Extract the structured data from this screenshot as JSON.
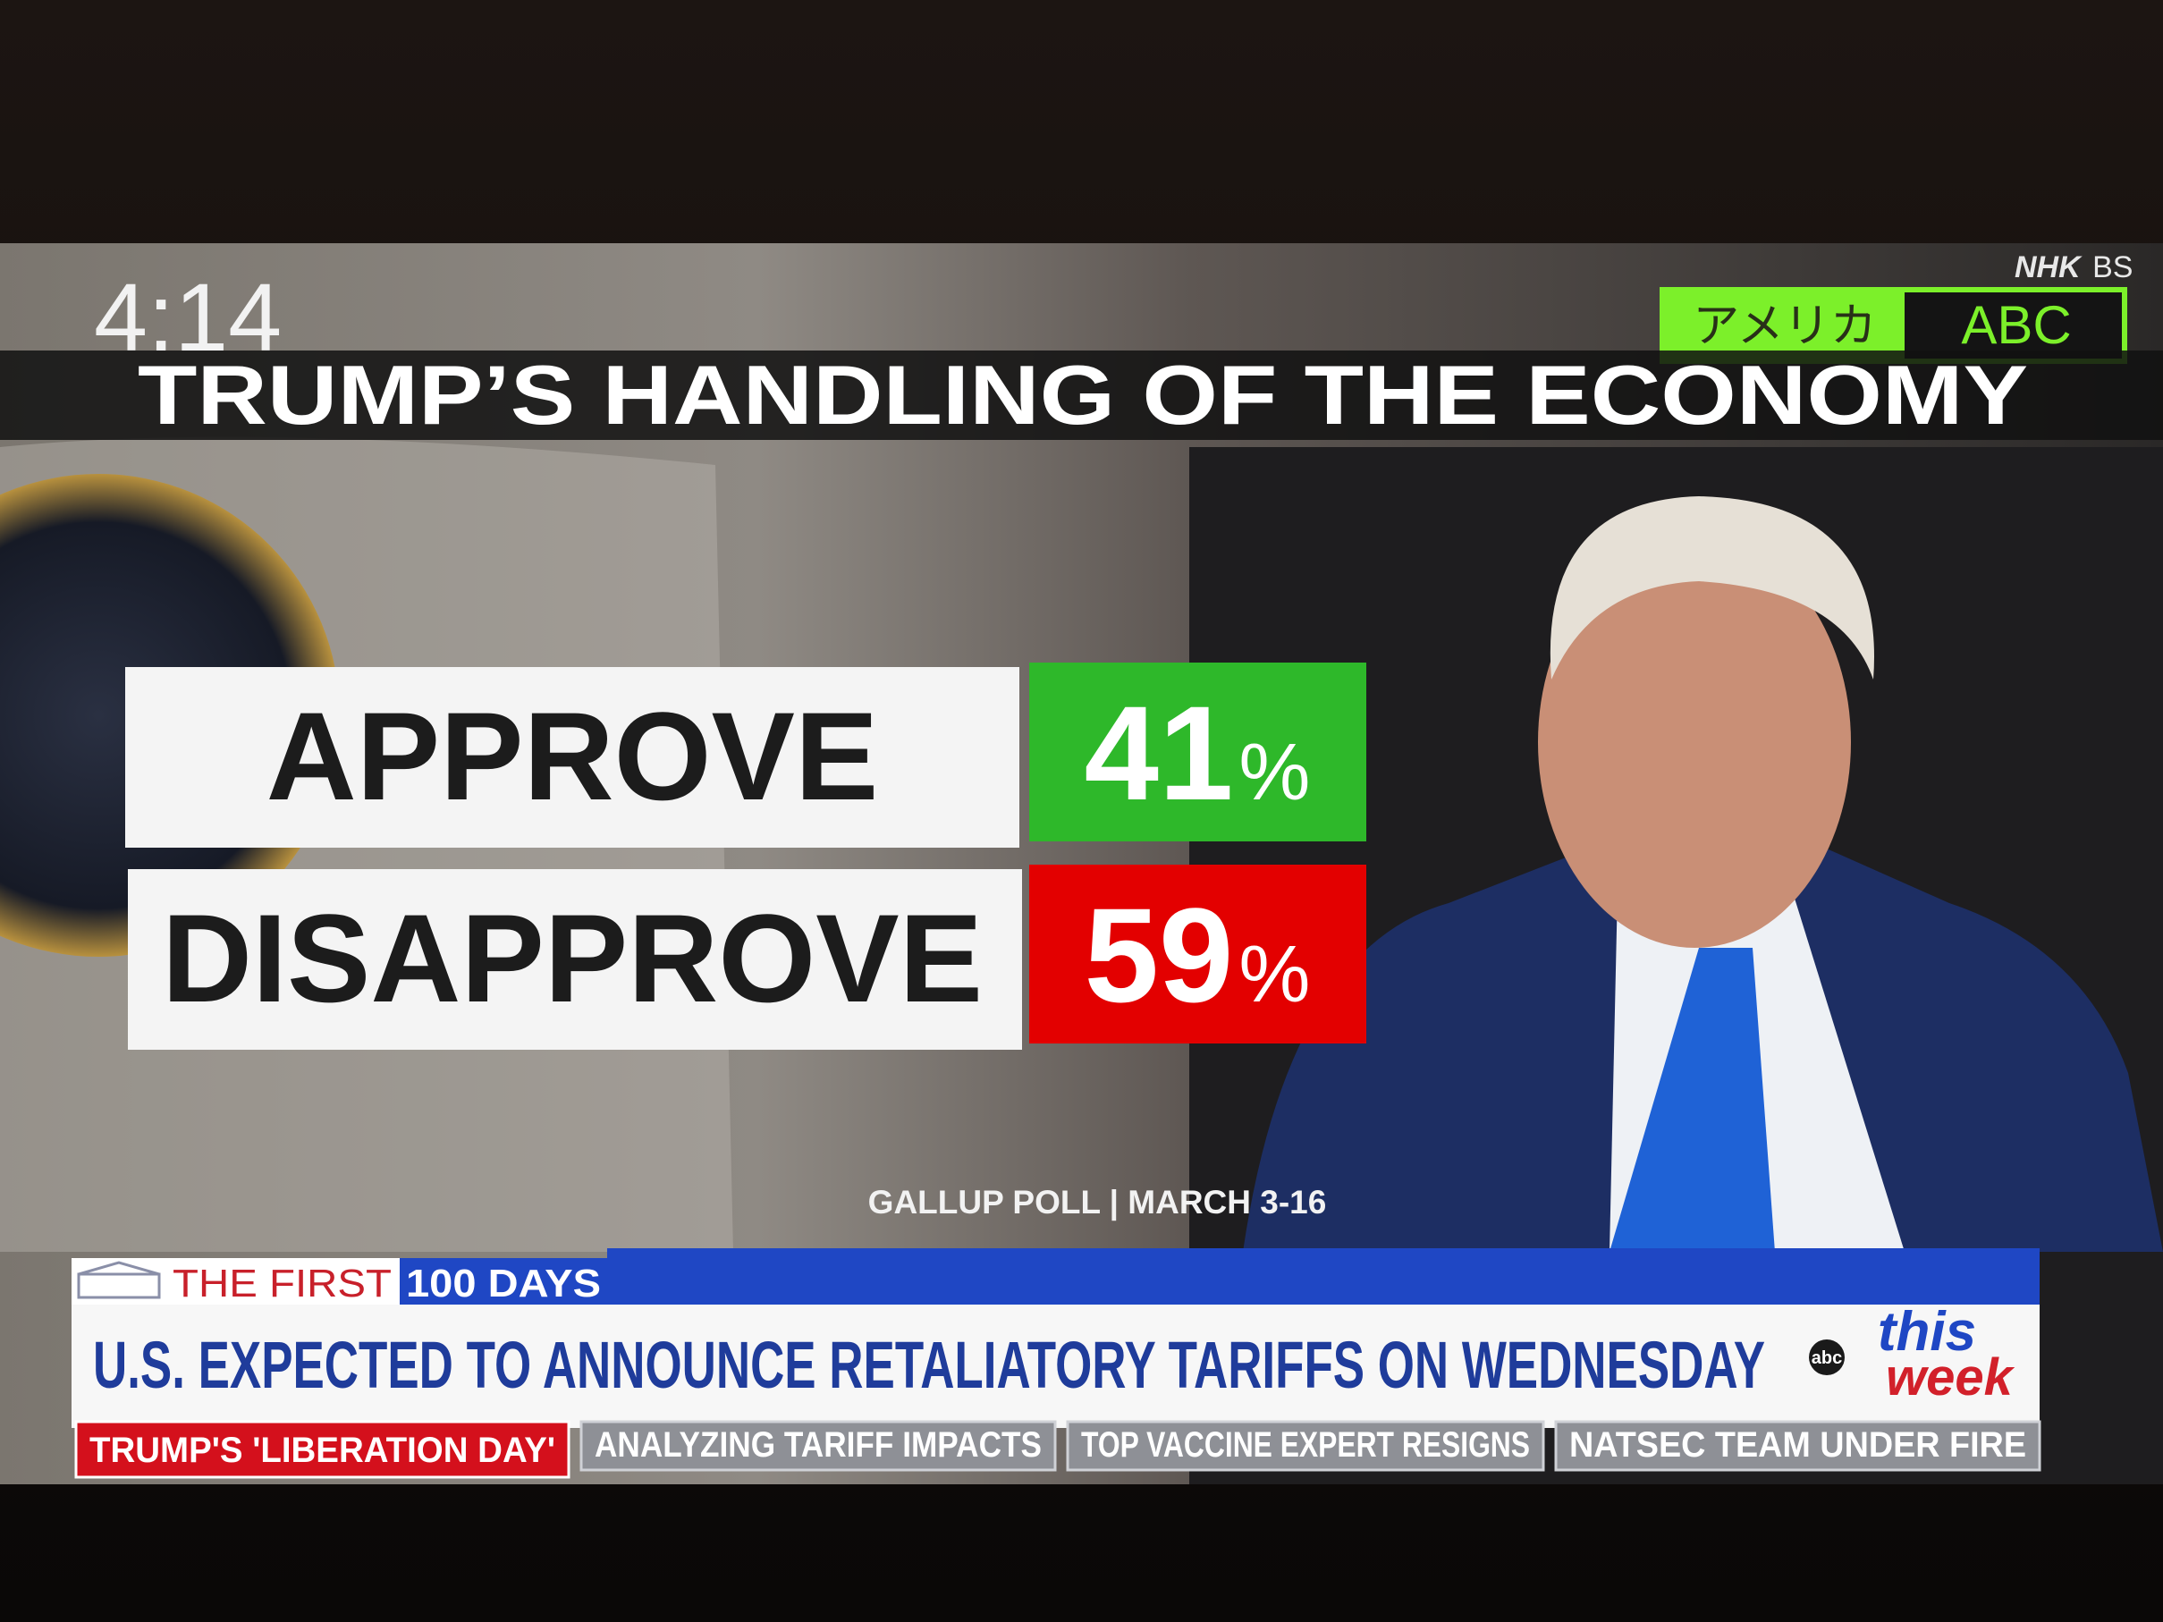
{
  "screen": {
    "clock": "4:14",
    "channel_brand": "NHK",
    "channel_suffix": "BS",
    "region_badge": "アメリカ",
    "network_badge": "ABC"
  },
  "graphic": {
    "title": "TRUMP’S HANDLING OF THE ECONOMY",
    "rows": [
      {
        "label": "APPROVE",
        "value": 41,
        "unit": "%",
        "color": "#2eb82a"
      },
      {
        "label": "DISAPPROVE",
        "value": 59,
        "unit": "%",
        "color": "#e30000"
      }
    ],
    "source": "GALLUP POLL | MARCH 3-16"
  },
  "lower_third": {
    "segment_prefix": "THE FIRST",
    "segment_name": "100 DAYS",
    "headline": "U.S. EXPECTED TO ANNOUNCE RETALIATORY TARIFFS ON WEDNESDAY",
    "network_logo": "abc",
    "show_logo": [
      "this",
      "week"
    ],
    "ticker": [
      "TRUMP'S 'LIBERATION DAY'",
      "ANALYZING TARIFF IMPACTS",
      "TOP VACCINE EXPERT RESIGNS",
      "NATSEC TEAM UNDER FIRE"
    ]
  }
}
